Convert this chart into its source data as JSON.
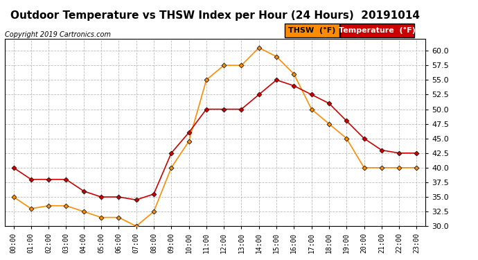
{
  "title": "Outdoor Temperature vs THSW Index per Hour (24 Hours)  20191014",
  "copyright": "Copyright 2019 Cartronics.com",
  "xlim": [
    -0.5,
    23.5
  ],
  "ylim": [
    30.0,
    62.0
  ],
  "yticks": [
    30.0,
    32.5,
    35.0,
    37.5,
    40.0,
    42.5,
    45.0,
    47.5,
    50.0,
    52.5,
    55.0,
    57.5,
    60.0
  ],
  "hours": [
    0,
    1,
    2,
    3,
    4,
    5,
    6,
    7,
    8,
    9,
    10,
    11,
    12,
    13,
    14,
    15,
    16,
    17,
    18,
    19,
    20,
    21,
    22,
    23
  ],
  "thsw": [
    35.0,
    33.0,
    33.5,
    33.5,
    32.5,
    31.5,
    31.5,
    30.0,
    32.5,
    40.0,
    44.5,
    55.0,
    57.5,
    57.5,
    60.5,
    59.0,
    56.0,
    50.0,
    47.5,
    45.0,
    40.0,
    40.0,
    40.0,
    40.0
  ],
  "temp": [
    40.0,
    38.0,
    38.0,
    38.0,
    36.0,
    35.0,
    35.0,
    34.5,
    35.5,
    42.5,
    46.0,
    50.0,
    50.0,
    50.0,
    52.5,
    55.0,
    54.0,
    52.5,
    51.0,
    48.0,
    45.0,
    43.0,
    42.5,
    42.5
  ],
  "thsw_color": "#FF8C00",
  "temp_color": "#CC0000",
  "marker_color": "#111111",
  "background_color": "#FFFFFF",
  "grid_color": "#BBBBBB",
  "title_fontsize": 11,
  "copyright_fontsize": 7,
  "tick_fontsize": 7,
  "legend_thsw_label": "THSW  (°F)",
  "legend_temp_label": "Temperature  (°F)"
}
